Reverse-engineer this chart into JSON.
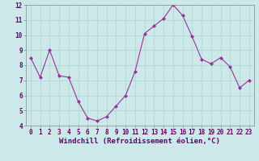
{
  "x": [
    0,
    1,
    2,
    3,
    4,
    5,
    6,
    7,
    8,
    9,
    10,
    11,
    12,
    13,
    14,
    15,
    16,
    17,
    18,
    19,
    20,
    21,
    22,
    23
  ],
  "y": [
    8.5,
    7.2,
    9.0,
    7.3,
    7.2,
    5.6,
    4.5,
    4.3,
    4.6,
    5.3,
    6.0,
    7.6,
    10.1,
    10.6,
    11.1,
    12.0,
    11.3,
    9.9,
    8.4,
    8.1,
    8.5,
    7.9,
    6.5,
    7.0
  ],
  "line_color": "#993399",
  "marker": "D",
  "marker_size": 2.0,
  "xlabel": "Windchill (Refroidissement éolien,°C)",
  "ylabel": "",
  "ylim": [
    4,
    12
  ],
  "xlim": [
    -0.5,
    23.5
  ],
  "yticks": [
    4,
    5,
    6,
    7,
    8,
    9,
    10,
    11,
    12
  ],
  "xticks": [
    0,
    1,
    2,
    3,
    4,
    5,
    6,
    7,
    8,
    9,
    10,
    11,
    12,
    13,
    14,
    15,
    16,
    17,
    18,
    19,
    20,
    21,
    22,
    23
  ],
  "bg_color": "#cce8e8",
  "grid_color": "#b0d8d8",
  "xlabel_fontsize": 6.5,
  "tick_fontsize": 5.5,
  "line_width": 0.8
}
